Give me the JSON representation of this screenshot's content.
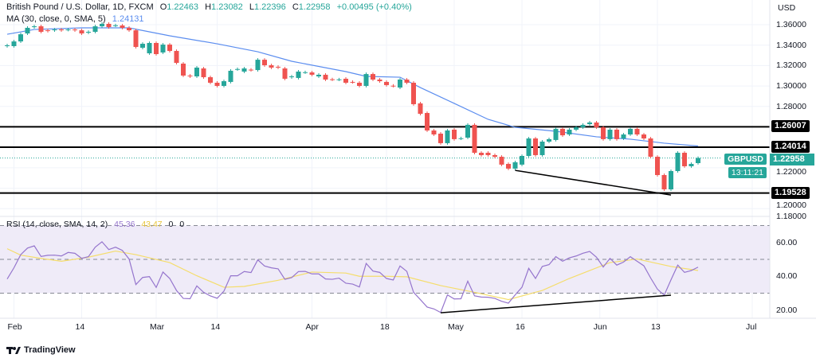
{
  "header": {
    "symbol_title": "British Pound / U.S. Dollar, 1D, FXCM",
    "open_label": "O",
    "open": "1.22463",
    "high_label": "H",
    "high": "1.23082",
    "low_label": "L",
    "low": "1.22396",
    "close_label": "C",
    "close": "1.22958",
    "change": "+0.00495 (+0.40%)",
    "ma_label": "MA (30, close, 0, SMA, 5)",
    "ma_value": "1.24131"
  },
  "rsi_header": {
    "label": "RSI (14, close, SMA, 14, 2)",
    "rsi_value": "45.36",
    "sma_value": "43.47",
    "extra1": "0",
    "extra2": "0"
  },
  "price_axis": {
    "currency": "USD",
    "ticks": [
      "1.36000",
      "1.34000",
      "1.32000",
      "1.30000",
      "1.28000",
      "1.22000",
      "1.20000",
      "1.18000"
    ]
  },
  "rsi_axis": {
    "ticks": [
      "60.00",
      "40.00",
      "20.00"
    ]
  },
  "levels": [
    {
      "label": "1.26007",
      "value": 1.26007
    },
    {
      "label": "1.24014",
      "value": 1.24014
    },
    {
      "label": "1.19528",
      "value": 1.19528
    }
  ],
  "current": {
    "symbol": "GBPUSD",
    "price": "1.22958",
    "value": 1.22958,
    "countdown": "13:11:21"
  },
  "time_axis": [
    {
      "label": "Feb",
      "index": 1
    },
    {
      "label": "14",
      "index": 11
    },
    {
      "label": "Mar",
      "index": 22
    },
    {
      "label": "14",
      "index": 31
    },
    {
      "label": "Apr",
      "index": 45
    },
    {
      "label": "18",
      "index": 56
    },
    {
      "label": "May",
      "index": 66
    },
    {
      "label": "16",
      "index": 76
    },
    {
      "label": "Jun",
      "index": 87.5
    },
    {
      "label": "13",
      "index": 96
    },
    {
      "label": "Jul",
      "index": 110
    }
  ],
  "colors": {
    "up": "#26a69a",
    "down": "#ef5350",
    "ma": "#5b8def",
    "rsi": "#9575cd",
    "rsi_sma": "#f5dd6b",
    "rsi_band": "#efebf8",
    "level": "#000000"
  },
  "brand": "TradingView",
  "chart_data": {
    "type": "candlestick",
    "open": [
      1.339,
      1.339,
      1.3436,
      1.3514,
      1.3576,
      1.3584,
      1.3545,
      1.3545,
      1.3553,
      1.355,
      1.3553,
      1.3545,
      1.3522,
      1.353,
      1.3584,
      1.3608,
      1.3592,
      1.3592,
      1.3569,
      1.3545,
      1.3374,
      1.332,
      1.3421,
      1.3328,
      1.3405,
      1.3343,
      1.3219,
      1.3102,
      1.3094,
      1.3172,
      1.3086,
      1.3032,
      1.3001,
      1.304,
      1.3164,
      1.3141,
      1.316,
      1.3156,
      1.3257,
      1.3203,
      1.3188,
      1.3172,
      1.3086,
      1.3079,
      1.3133,
      1.3133,
      1.3094,
      1.311,
      1.3066,
      1.3063,
      1.3071,
      1.304,
      1.3032,
      1.3001,
      1.3117,
      1.3063,
      1.304,
      1.3003,
      1.2985,
      1.3063,
      1.3032,
      1.283,
      1.2736,
      1.2565,
      1.2534,
      1.2441,
      1.2573,
      1.2487,
      1.2495,
      1.262,
      1.2347,
      1.2347,
      1.2324,
      1.2308,
      1.2238,
      1.2192,
      1.2231,
      1.2316,
      1.2487,
      1.2324,
      1.2456,
      1.2472,
      1.2581,
      1.2526,
      1.2573,
      1.2596,
      1.2627,
      1.2643,
      1.2596,
      1.248,
      1.2573,
      1.2487,
      1.2526,
      1.2581,
      1.2526,
      1.2487,
      1.2308,
      1.2129,
      1.1989,
      1.2168,
      1.2347,
      1.2215,
      1.2246
    ],
    "close": [
      1.3398,
      1.3436,
      1.3506,
      1.3569,
      1.3584,
      1.353,
      1.3538,
      1.3553,
      1.3545,
      1.3553,
      1.3545,
      1.3514,
      1.353,
      1.3584,
      1.3608,
      1.3576,
      1.3594,
      1.3569,
      1.3545,
      1.3382,
      1.3413,
      1.3421,
      1.3312,
      1.3405,
      1.3343,
      1.3226,
      1.3102,
      1.3094,
      1.318,
      1.3086,
      1.3032,
      1.3001,
      1.3047,
      1.3149,
      1.3166,
      1.3172,
      1.3156,
      1.3257,
      1.3203,
      1.318,
      1.318,
      1.3071,
      1.3094,
      1.3141,
      1.3135,
      1.311,
      1.311,
      1.3063,
      1.3063,
      1.3065,
      1.3032,
      1.3038,
      1.3001,
      1.3117,
      1.3063,
      1.3047,
      1.3009,
      1.3001,
      1.3063,
      1.3032,
      1.2822,
      1.2728,
      1.2565,
      1.2526,
      1.2441,
      1.2565,
      1.248,
      1.2489,
      1.262,
      1.2347,
      1.2324,
      1.2324,
      1.2308,
      1.2231,
      1.2192,
      1.2254,
      1.2316,
      1.2487,
      1.2324,
      1.2456,
      1.248,
      1.2581,
      1.2518,
      1.2573,
      1.2596,
      1.262,
      1.2643,
      1.2596,
      1.248,
      1.2573,
      1.248,
      1.2526,
      1.2581,
      1.2526,
      1.2487,
      1.2308,
      1.2129,
      1.1989,
      1.2168,
      1.2347,
      1.2215,
      1.2238,
      1.2296
    ],
    "ma30": [
      [
        0,
        1.3506
      ],
      [
        4,
        1.3553
      ],
      [
        11,
        1.3569
      ],
      [
        18,
        1.3569
      ],
      [
        24,
        1.3491
      ],
      [
        31,
        1.3413
      ],
      [
        37,
        1.3335
      ],
      [
        42,
        1.3242
      ],
      [
        50,
        1.3141
      ],
      [
        53,
        1.3094
      ],
      [
        58,
        1.3086
      ],
      [
        61,
        1.2985
      ],
      [
        66,
        1.283
      ],
      [
        71,
        1.2674
      ],
      [
        75,
        1.2596
      ],
      [
        81,
        1.2557
      ],
      [
        87,
        1.2503
      ],
      [
        92,
        1.248
      ],
      [
        97,
        1.2441
      ],
      [
        102,
        1.2413
      ]
    ],
    "price_trendline": [
      [
        75,
        1.2175
      ],
      [
        98,
        1.1934
      ]
    ],
    "rsi": [
      38.4,
      45.0,
      52.8,
      56.7,
      58.0,
      51.7,
      52.4,
      52.5,
      52.0,
      54.1,
      53.6,
      50.6,
      51.6,
      57.2,
      60.4,
      55.8,
      57.2,
      55.3,
      50.2,
      35.1,
      39.3,
      39.8,
      33.4,
      42.5,
      38.7,
      31.6,
      26.9,
      26.7,
      34.3,
      30.5,
      28.4,
      27.0,
      31.2,
      40.3,
      40.3,
      42.8,
      42.2,
      49.7,
      46.1,
      45.0,
      44.4,
      38.2,
      39.2,
      42.8,
      42.9,
      41.4,
      41.4,
      38.4,
      38.2,
      38.9,
      35.9,
      35.4,
      33.7,
      47.6,
      43.1,
      42.3,
      38.7,
      37.8,
      46.1,
      42.9,
      30.5,
      26.2,
      21.8,
      20.7,
      18.6,
      29.0,
      26.6,
      26.7,
      37.1,
      28.4,
      27.7,
      27.6,
      26.9,
      25.2,
      24.1,
      29.0,
      33.5,
      44.7,
      38.7,
      45.8,
      46.9,
      51.6,
      48.9,
      50.9,
      52.0,
      53.6,
      54.7,
      51.3,
      45.5,
      50.6,
      46.6,
      48.4,
      51.6,
      48.9,
      46.2,
      39.0,
      32.4,
      28.8,
      37.9,
      46.6,
      42.3,
      43.4,
      45.4
    ],
    "rsi_sma": [
      [
        0,
        56.3
      ],
      [
        2,
        52.5
      ],
      [
        5,
        50.6
      ],
      [
        8,
        48.9
      ],
      [
        12,
        51.3
      ],
      [
        16,
        54.9
      ],
      [
        19,
        52.8
      ],
      [
        24,
        48.1
      ],
      [
        28,
        40.3
      ],
      [
        32,
        33.5
      ],
      [
        35,
        34.0
      ],
      [
        40,
        37.6
      ],
      [
        45,
        42.5
      ],
      [
        50,
        41.9
      ],
      [
        52,
        40.0
      ],
      [
        56,
        40.0
      ],
      [
        59,
        39.7
      ],
      [
        64,
        34.5
      ],
      [
        69,
        30.5
      ],
      [
        74,
        26.2
      ],
      [
        79,
        31.6
      ],
      [
        83,
        38.7
      ],
      [
        89,
        48.1
      ],
      [
        93,
        50.2
      ],
      [
        98,
        45.8
      ],
      [
        102,
        43.4
      ]
    ],
    "rsi_trendline": [
      [
        64,
        18.4
      ],
      [
        98,
        28.8
      ]
    ],
    "rsi_levels": [
      70,
      50,
      30
    ],
    "ylim": [
      1.18,
      1.37
    ],
    "rsi_ylim": [
      15,
      72
    ]
  }
}
